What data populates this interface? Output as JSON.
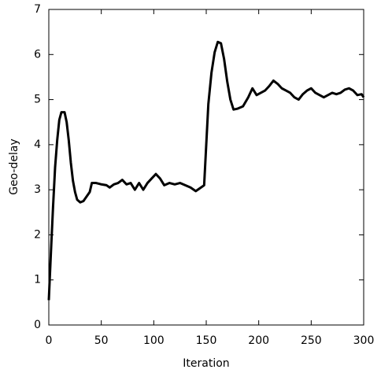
{
  "chart_data": {
    "type": "line",
    "xlabel": "Iteration",
    "ylabel": "Geo-delay",
    "x": [
      0,
      2,
      4,
      6,
      8,
      10,
      12,
      15,
      17,
      19,
      21,
      23,
      25,
      27,
      30,
      33,
      36,
      39,
      41,
      45,
      50,
      55,
      58,
      62,
      66,
      70,
      74,
      78,
      82,
      86,
      90,
      94,
      98,
      102,
      106,
      110,
      115,
      120,
      125,
      130,
      135,
      140,
      145,
      148,
      150,
      152,
      155,
      158,
      161,
      164,
      167,
      170,
      173,
      176,
      180,
      185,
      190,
      194,
      198,
      202,
      206,
      210,
      214,
      218,
      222,
      226,
      230,
      234,
      238,
      242,
      246,
      250,
      254,
      258,
      262,
      266,
      270,
      274,
      278,
      282,
      286,
      290,
      294,
      298,
      300
    ],
    "values": [
      0.55,
      1.6,
      2.6,
      3.5,
      4.1,
      4.55,
      4.72,
      4.72,
      4.5,
      4.1,
      3.6,
      3.2,
      2.95,
      2.78,
      2.72,
      2.75,
      2.85,
      2.95,
      3.15,
      3.15,
      3.12,
      3.1,
      3.05,
      3.12,
      3.15,
      3.22,
      3.12,
      3.15,
      3.0,
      3.15,
      3.0,
      3.15,
      3.25,
      3.35,
      3.25,
      3.1,
      3.15,
      3.12,
      3.15,
      3.1,
      3.05,
      2.97,
      3.05,
      3.1,
      4.0,
      4.9,
      5.6,
      6.05,
      6.28,
      6.25,
      5.9,
      5.4,
      5.0,
      4.78,
      4.8,
      4.85,
      5.05,
      5.25,
      5.1,
      5.15,
      5.2,
      5.3,
      5.42,
      5.35,
      5.25,
      5.2,
      5.15,
      5.05,
      5.0,
      5.12,
      5.2,
      5.25,
      5.15,
      5.1,
      5.05,
      5.1,
      5.15,
      5.12,
      5.15,
      5.22,
      5.25,
      5.2,
      5.1,
      5.12,
      5.05
    ],
    "color": "#000000",
    "xlim": [
      0,
      300
    ],
    "xticks": [
      0,
      50,
      100,
      150,
      200,
      250,
      300
    ],
    "ylim": [
      0,
      7
    ],
    "yticks": [
      0,
      1,
      2,
      3,
      4,
      5,
      6,
      7
    ],
    "grid": false
  }
}
